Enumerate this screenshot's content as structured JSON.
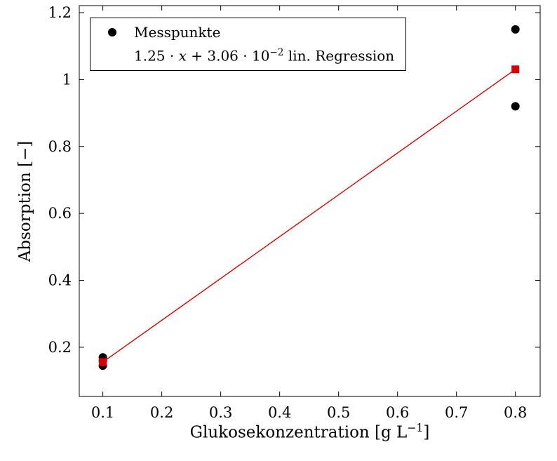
{
  "axis": {
    "ylabel": "Absorption [−]",
    "xlabel_main": "Glukosekonzentration [g L",
    "xlabel_sup": "−1",
    "xlabel_end": "]"
  },
  "legend": {
    "items": [
      {
        "label": "Messpunkte"
      },
      {
        "eq_prefix": "1.25 · ",
        "eq_var": "x",
        "eq_mid": " + 3.06 · 10",
        "eq_exp": "−2",
        "eq_suffix": " lin. Regression"
      }
    ]
  },
  "chart_data": {
    "type": "scatter",
    "title": "",
    "xlabel": "Glukosekonzentration [g L^-1]",
    "ylabel": "Absorption [-]",
    "xlim": [
      0.06,
      0.842
    ],
    "ylim": [
      0.053,
      1.221
    ],
    "xticks": [
      0.1,
      0.2,
      0.3,
      0.4,
      0.5,
      0.6,
      0.7,
      0.8
    ],
    "yticks": [
      0.2,
      0.4,
      0.6,
      0.8,
      1.0,
      1.2
    ],
    "grid": false,
    "legend_position": "top-left",
    "colors": {
      "points": "#000000",
      "regression": "#dd0000"
    },
    "series": [
      {
        "name": "Messpunkte",
        "kind": "scatter",
        "marker": "circle",
        "color": "#000000",
        "points": [
          [
            0.1,
            0.145
          ],
          [
            0.1,
            0.16
          ],
          [
            0.1,
            0.17
          ],
          [
            0.8,
            0.92
          ],
          [
            0.8,
            1.15
          ]
        ]
      },
      {
        "name": "1.25 · x + 3.06 · 10^-2 lin. Regression",
        "kind": "line",
        "marker": "square",
        "color": "#dd0000",
        "slope": 1.25,
        "intercept": 0.0306,
        "points": [
          [
            0.1,
            0.1556
          ],
          [
            0.8,
            1.0306
          ]
        ]
      }
    ]
  }
}
